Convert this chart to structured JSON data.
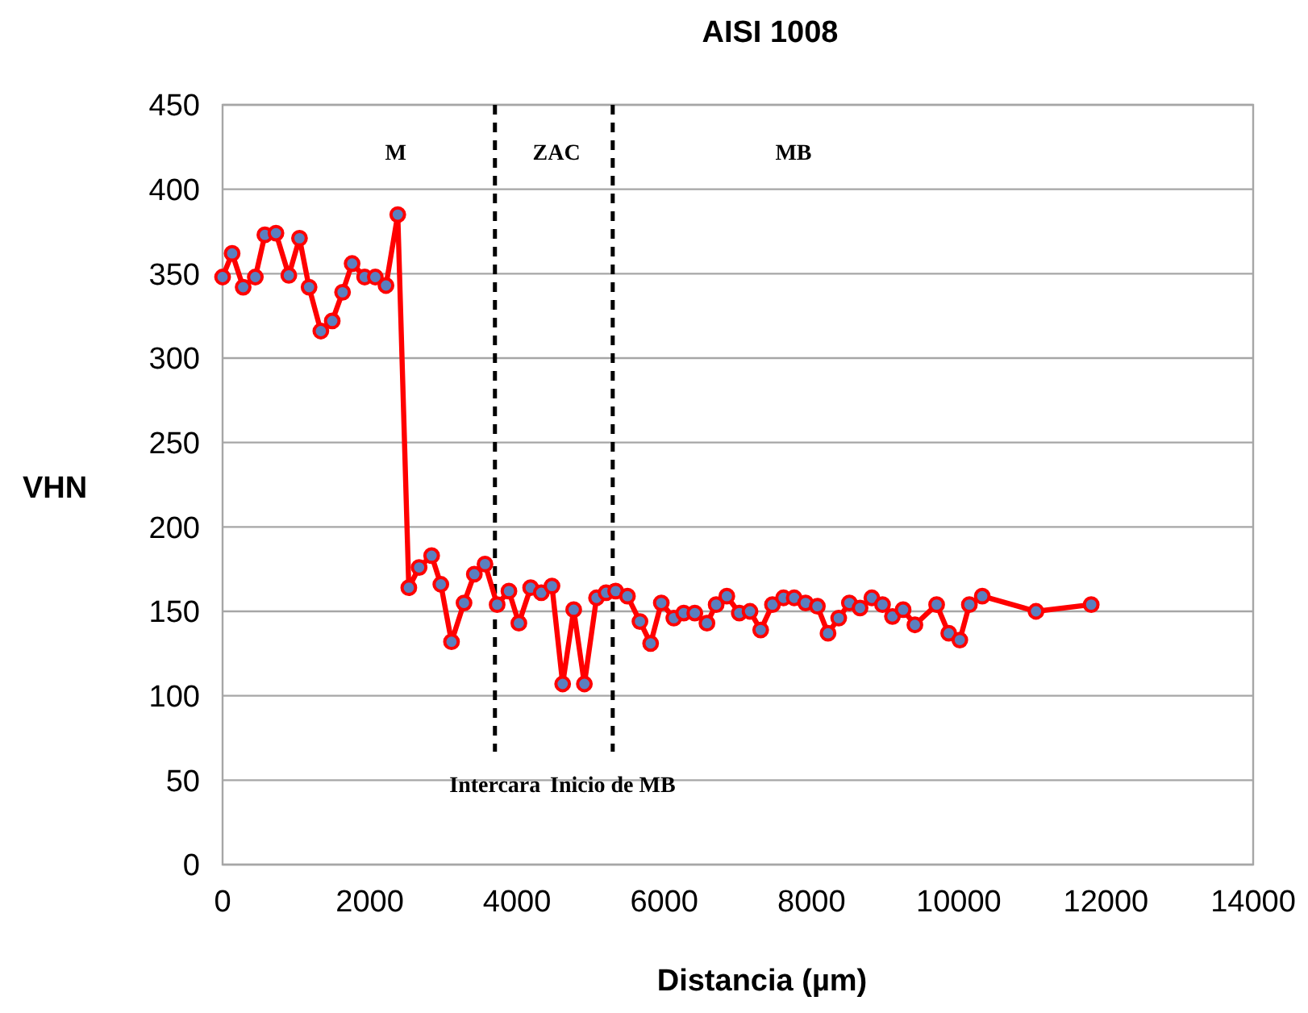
{
  "chart_data": {
    "type": "line",
    "title": "AISI 1008",
    "xlabel": "Distancia (µm)",
    "ylabel": "VHN",
    "xlim": [
      0,
      14000
    ],
    "xticks": [
      0,
      2000,
      4000,
      6000,
      8000,
      10000,
      12000,
      14000
    ],
    "ylim": [
      0,
      450
    ],
    "yticks": [
      0,
      50,
      100,
      150,
      200,
      250,
      300,
      350,
      400,
      450
    ],
    "grid": "y",
    "marker": "circle",
    "line_style": "solid",
    "series": [
      {
        "color": "#ff0000",
        "x": [
          0,
          130,
          280,
          445,
          575,
          725,
          900,
          1045,
          1175,
          1335,
          1490,
          1630,
          1760,
          1930,
          2075,
          2220,
          2380,
          2530,
          2670,
          2840,
          2965,
          3110,
          3280,
          3420,
          3565,
          3730,
          3890,
          4025,
          4185,
          4330,
          4475,
          4620,
          4770,
          4915,
          5080,
          5210,
          5340,
          5500,
          5670,
          5815,
          5960,
          6130,
          6265,
          6415,
          6580,
          6705,
          6850,
          7020,
          7165,
          7310,
          7470,
          7620,
          7765,
          7920,
          8080,
          8225,
          8370,
          8515,
          8660,
          8820,
          8965,
          9100,
          9245,
          9405,
          9700,
          9865,
          10015,
          10145,
          10320,
          11050,
          11800
        ],
        "values": [
          348,
          362,
          342,
          348,
          373,
          374,
          349,
          371,
          342,
          316,
          322,
          339,
          356,
          348,
          348,
          343,
          385,
          164,
          176,
          183,
          166,
          132,
          155,
          172,
          178,
          154,
          162,
          143,
          164,
          161,
          165,
          107,
          151,
          107,
          158,
          161,
          162,
          159,
          144,
          131,
          155,
          146,
          149,
          149,
          143,
          154,
          159,
          149,
          150,
          139,
          154,
          158,
          158,
          155,
          153,
          137,
          146,
          155,
          152,
          158,
          154,
          147,
          151,
          142,
          154,
          137,
          133,
          154,
          159,
          150,
          154
        ]
      }
    ],
    "ref_lines": [
      {
        "axis": "x",
        "value": 3700,
        "label": "Intercara",
        "color": "#000000",
        "line_style": "dashed"
      },
      {
        "axis": "x",
        "value": 5300,
        "label": "Inicio de MB",
        "color": "#000000",
        "line_style": "dashed"
      }
    ],
    "annotations": [
      "M",
      "ZAC",
      "MB"
    ]
  }
}
